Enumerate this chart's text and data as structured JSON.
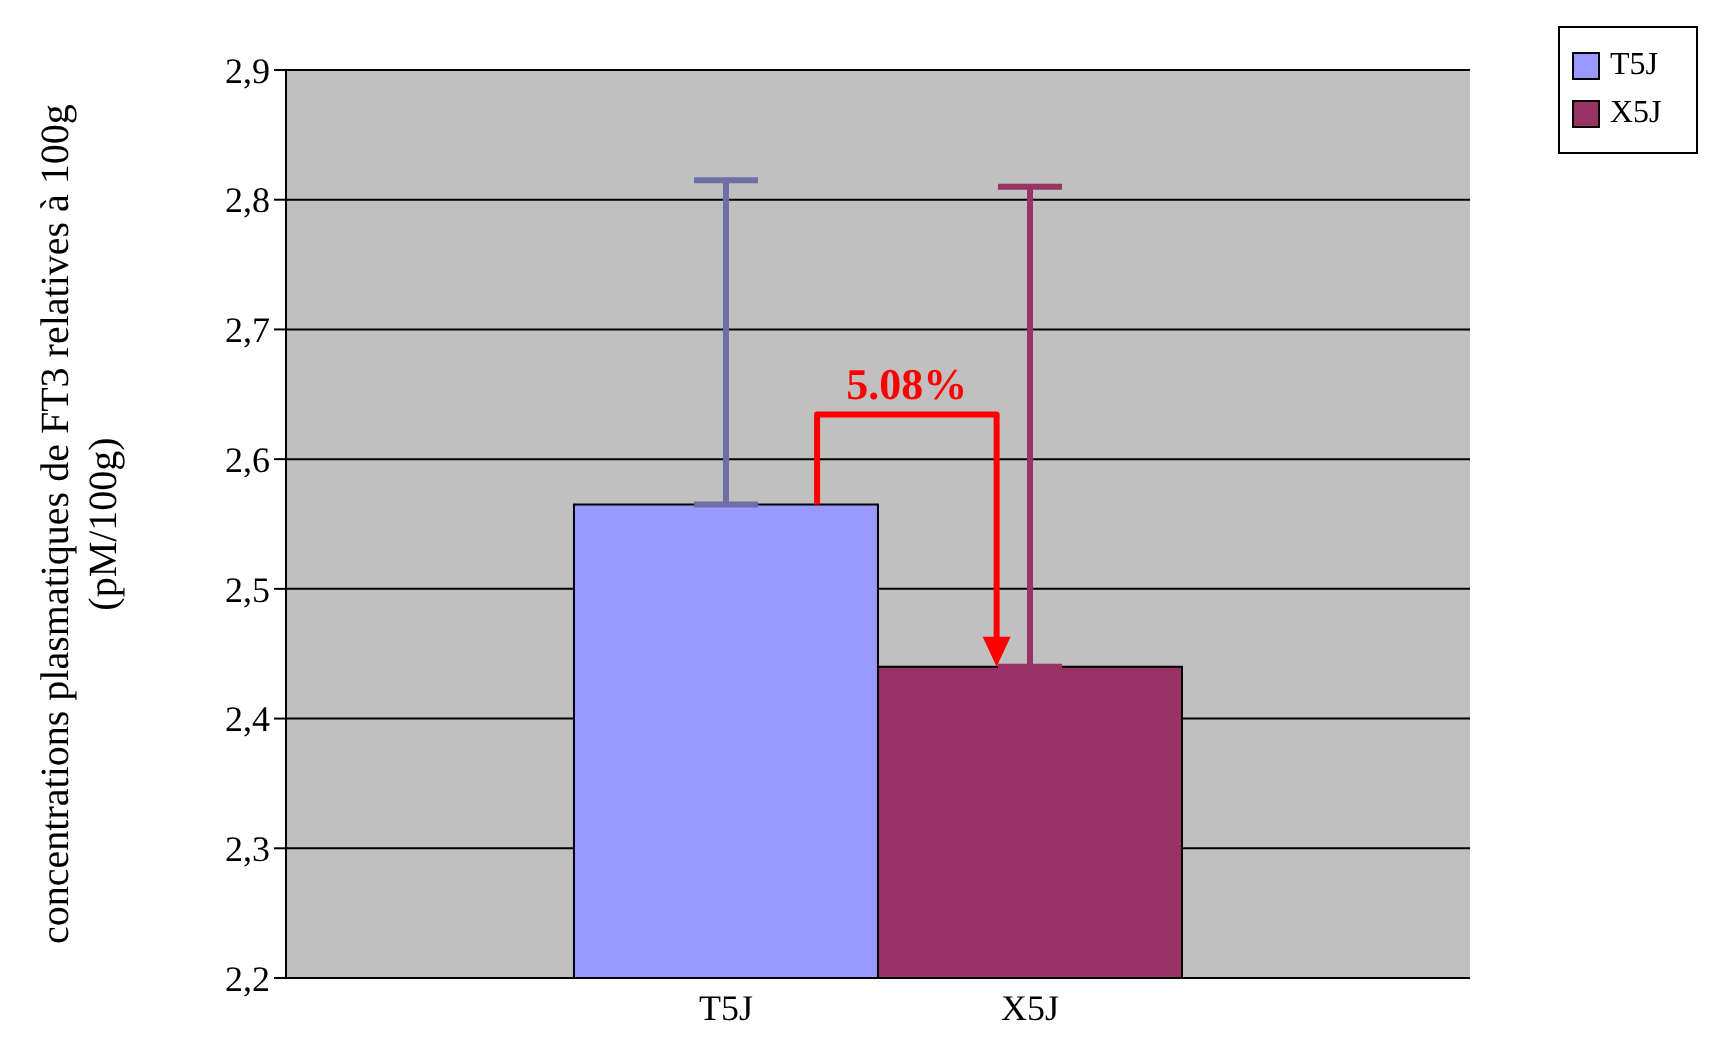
{
  "chart_data": {
    "type": "bar",
    "ylabel": "concentrations plasmatiques de FT3 relatives à 100g (pM/100g)",
    "categories": [
      "T5J",
      "X5J"
    ],
    "stacked": true,
    "series": [
      {
        "name": "T5J",
        "color": "#9999ff",
        "values": [
          2.565,
          null
        ],
        "errors": [
          [
            2.565,
            2.815
          ],
          null
        ]
      },
      {
        "name": "X5J",
        "color": "#993366",
        "values": [
          null,
          2.44
        ],
        "errors": [
          null,
          [
            2.44,
            2.81
          ]
        ]
      }
    ],
    "ylim": [
      2.2,
      2.9
    ],
    "yticks": [
      {
        "value": 2.2,
        "label": "2,2"
      },
      {
        "value": 2.3,
        "label": "2,3"
      },
      {
        "value": 2.4,
        "label": "2,4"
      },
      {
        "value": 2.5,
        "label": "2,5"
      },
      {
        "value": 2.6,
        "label": "2,6"
      },
      {
        "value": 2.7,
        "label": "2,7"
      },
      {
        "value": 2.8,
        "label": "2,8"
      },
      {
        "value": 2.9,
        "label": "2,9"
      }
    ],
    "grid": "y",
    "legend": "top right",
    "annotations": [
      "5.08%"
    ]
  }
}
